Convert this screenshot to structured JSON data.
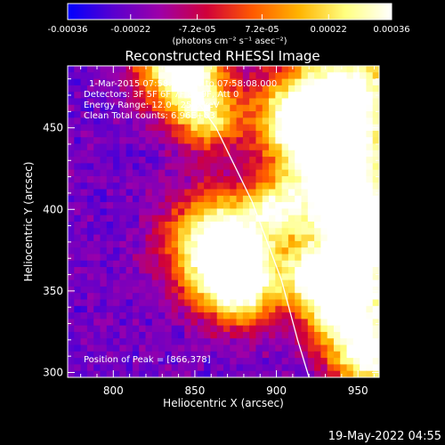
{
  "colorbar": {
    "ticks": [
      "-0.00036",
      "-0.00022",
      "-7.2e-05",
      "7.2e-05",
      "0.00022",
      "0.00036"
    ],
    "tick_values": [
      -0.00036,
      -0.00022,
      -7.2e-05,
      7.2e-05,
      0.00022,
      0.00036
    ],
    "range": [
      -0.00036,
      0.00036
    ],
    "units": "(photons cm⁻² s⁻¹ asec⁻²)",
    "gradient_colors": [
      "#0000ff",
      "#5a00cf",
      "#9e00a8",
      "#d0003a",
      "#ff5a00",
      "#ffb400",
      "#ffff80",
      "#ffffff"
    ]
  },
  "plot": {
    "title": "Reconstructed RHESSI Image",
    "info": {
      "line1": "1-Mar-2015 07:58:08.000 to 07:58:08.000",
      "line2": "Detectors: 3F 5F 6F 7F 8F 9F, Att 0",
      "line3": "Energy Range: 12.0 - 25.0 keV",
      "line4": "Clean    Total counts: 6.96E+03"
    },
    "peak_label": "Position of Peak = [866,378]"
  },
  "chart_data": {
    "type": "heatmap",
    "title": "Reconstructed RHESSI Image",
    "xlabel": "Heliocentric X (arcsec)",
    "ylabel": "Heliocentric Y (arcsec)",
    "xlim": [
      772,
      963
    ],
    "ylim": [
      297,
      488
    ],
    "x_ticks": [
      800,
      850,
      900,
      950
    ],
    "y_ticks": [
      300,
      350,
      400,
      450
    ],
    "peak": [
      866,
      378
    ],
    "sources": [
      {
        "x": 866,
        "y": 378,
        "r": 22,
        "v": 1.0
      },
      {
        "x": 878,
        "y": 352,
        "r": 16,
        "v": 0.7
      },
      {
        "x": 842,
        "y": 486,
        "r": 18,
        "v": 0.95
      },
      {
        "x": 858,
        "y": 455,
        "r": 14,
        "v": 0.55
      },
      {
        "x": 945,
        "y": 470,
        "r": 26,
        "v": 0.85
      },
      {
        "x": 935,
        "y": 420,
        "r": 22,
        "v": 0.8
      },
      {
        "x": 955,
        "y": 380,
        "r": 24,
        "v": 0.85
      },
      {
        "x": 940,
        "y": 340,
        "r": 18,
        "v": 0.75
      },
      {
        "x": 958,
        "y": 310,
        "r": 16,
        "v": 0.8
      },
      {
        "x": 910,
        "y": 455,
        "r": 18,
        "v": 0.6
      },
      {
        "x": 900,
        "y": 400,
        "r": 12,
        "v": 0.45
      },
      {
        "x": 920,
        "y": 360,
        "r": 12,
        "v": 0.5
      }
    ],
    "limb_curve": [
      [
        836,
        488
      ],
      [
        863,
        450
      ],
      [
        885,
        405
      ],
      [
        903,
        357
      ],
      [
        913,
        320
      ],
      [
        920,
        297
      ]
    ],
    "colorscale": [
      "#0000ff",
      "#5a00cf",
      "#9e00a8",
      "#d0003a",
      "#ff5a00",
      "#ffb400",
      "#ffff80",
      "#ffffff"
    ]
  },
  "footer": {
    "date": "19-May-2022 04:55"
  }
}
